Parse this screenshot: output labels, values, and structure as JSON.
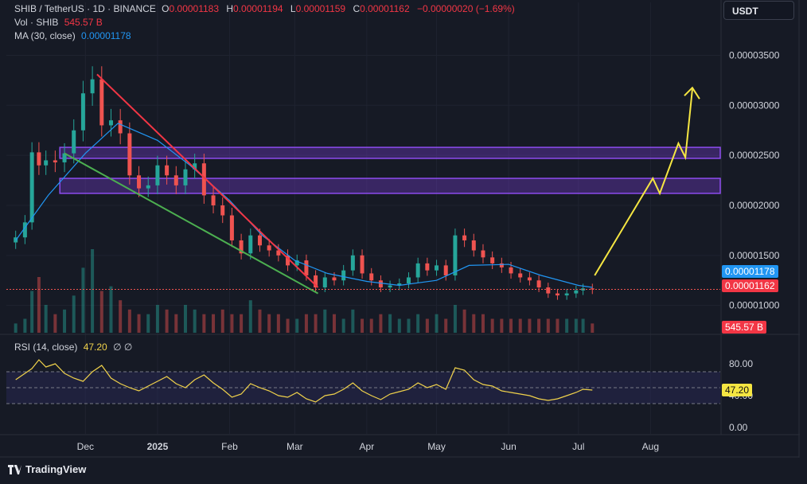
{
  "header": {
    "symbol": "SHIB / TetherUS · 1D · BINANCE",
    "o_label": "O",
    "o_value": "0.00001183",
    "h_label": "H",
    "h_value": "0.00001194",
    "l_label": "L",
    "l_value": "0.00001159",
    "c_label": "C",
    "c_value": "0.00001162",
    "change": "−0.00000020 (−1.69%)",
    "vol_label": "Vol · SHIB",
    "vol_value": "545.57 B",
    "ma_label": "MA (30, close)",
    "ma_value": "0.00001178"
  },
  "currency_button": "USDT",
  "badges": {
    "ma": "0.00001178",
    "close": "0.00001162",
    "volume": "545.57 B",
    "rsi": "47.20"
  },
  "rsi": {
    "label": "RSI (14, close)",
    "value": "47.20",
    "icons": "∅ ∅",
    "ticks": [
      "80.00",
      "40.00",
      "0.00"
    ]
  },
  "brand": "TradingView",
  "colors": {
    "background": "#161a25",
    "up": "#26a69a",
    "down": "#ef5350",
    "ma": "#2196f3",
    "rsi": "#f0d24b",
    "zone": "#7b3fd6",
    "red_trend": "#f23645",
    "green_trend": "#4caf50",
    "projection": "#f5e642"
  },
  "chart_data": {
    "type": "line",
    "y_ticks": [
      "0.00003500",
      "0.00003000",
      "0.00002500",
      "0.00002000",
      "0.00001500",
      "0.00001000"
    ],
    "x_ticks": [
      "Dec",
      "2025",
      "Feb",
      "Mar",
      "Apr",
      "May",
      "Jun",
      "Jul",
      "Aug"
    ],
    "ylim": [
      8.7e-06,
      3.83e-05
    ],
    "price_series": {
      "x": [
        "2024-11-01",
        "2024-11-05",
        "2024-11-08",
        "2024-11-11",
        "2024-11-14",
        "2024-11-18",
        "2024-11-22",
        "2024-11-26",
        "2024-11-30",
        "2024-12-04",
        "2024-12-08",
        "2024-12-12",
        "2024-12-16",
        "2024-12-20",
        "2024-12-24",
        "2024-12-28",
        "2025-01-01",
        "2025-01-05",
        "2025-01-09",
        "2025-01-13",
        "2025-01-17",
        "2025-01-21",
        "2025-01-25",
        "2025-01-29",
        "2025-02-02",
        "2025-02-06",
        "2025-02-10",
        "2025-02-14",
        "2025-02-18",
        "2025-02-22",
        "2025-02-26",
        "2025-03-02",
        "2025-03-06",
        "2025-03-10",
        "2025-03-14",
        "2025-03-18",
        "2025-03-22",
        "2025-03-26",
        "2025-03-30",
        "2025-04-03",
        "2025-04-07",
        "2025-04-11",
        "2025-04-15",
        "2025-04-19",
        "2025-04-23",
        "2025-04-27",
        "2025-05-01",
        "2025-05-05",
        "2025-05-09",
        "2025-05-13",
        "2025-05-17",
        "2025-05-21",
        "2025-05-25",
        "2025-05-29",
        "2025-06-02",
        "2025-06-06",
        "2025-06-10",
        "2025-06-14",
        "2025-06-18",
        "2025-06-22",
        "2025-06-26",
        "2025-06-30",
        "2025-07-03",
        "2025-07-07"
      ],
      "close": [
        1.68e-05,
        1.83e-05,
        2.53e-05,
        2.4e-05,
        2.45e-05,
        2.43e-05,
        2.52e-05,
        2.75e-05,
        3.12e-05,
        3.26e-05,
        2.8e-05,
        2.85e-05,
        2.72e-05,
        2.3e-05,
        2.17e-05,
        2.2e-05,
        2.4e-05,
        2.3e-05,
        2.2e-05,
        2.36e-05,
        2.42e-05,
        2.1e-05,
        2e-05,
        1.9e-05,
        1.65e-05,
        1.52e-05,
        1.7e-05,
        1.6e-05,
        1.55e-05,
        1.5e-05,
        1.4e-05,
        1.45e-05,
        1.3e-05,
        1.18e-05,
        1.28e-05,
        1.25e-05,
        1.35e-05,
        1.5e-05,
        1.32e-05,
        1.25e-05,
        1.18e-05,
        1.2e-05,
        1.22e-05,
        1.28e-05,
        1.42e-05,
        1.35e-05,
        1.4e-05,
        1.3e-05,
        1.7e-05,
        1.65e-05,
        1.55e-05,
        1.48e-05,
        1.42e-05,
        1.38e-05,
        1.32e-05,
        1.28e-05,
        1.25e-05,
        1.18e-05,
        1.12e-05,
        1.1e-05,
        1.12e-05,
        1.15e-05,
        1.17e-05,
        1.16e-05
      ]
    },
    "ma_series": {
      "x": [
        "2024-11-01",
        "2024-11-15",
        "2024-12-01",
        "2024-12-15",
        "2025-01-01",
        "2025-01-15",
        "2025-02-01",
        "2025-02-15",
        "2025-03-01",
        "2025-03-15",
        "2025-04-01",
        "2025-04-15",
        "2025-05-01",
        "2025-05-15",
        "2025-06-01",
        "2025-06-15",
        "2025-07-01",
        "2025-07-07"
      ],
      "values": [
        1.65e-05,
        2.1e-05,
        2.52e-05,
        2.82e-05,
        2.65e-05,
        2.4e-05,
        2.05e-05,
        1.7e-05,
        1.45e-05,
        1.32e-05,
        1.24e-05,
        1.2e-05,
        1.25e-05,
        1.4e-05,
        1.41e-05,
        1.3e-05,
        1.2e-05,
        1.18e-05
      ]
    },
    "resistance_zones": [
      {
        "from": 2.47e-05,
        "to": 2.58e-05
      },
      {
        "from": 2.12e-05,
        "to": 2.27e-05
      }
    ],
    "trendlines": [
      {
        "color": "red",
        "from": {
          "x": "2024-12-06",
          "y": 3.31e-05
        },
        "to": {
          "x": "2025-03-11",
          "y": 1.18e-05
        }
      },
      {
        "color": "green",
        "from": {
          "x": "2024-11-22",
          "y": 2.52e-05
        },
        "to": {
          "x": "2025-03-11",
          "y": 1.12e-05
        }
      }
    ],
    "projection_path": [
      {
        "x": "2025-07-08",
        "y": 1.3e-05
      },
      {
        "x": "2025-08-02",
        "y": 2.27e-05
      },
      {
        "x": "2025-08-05",
        "y": 2.12e-05
      },
      {
        "x": "2025-08-13",
        "y": 2.62e-05
      },
      {
        "x": "2025-08-16",
        "y": 2.48e-05
      },
      {
        "x": "2025-08-19",
        "y": 3.16e-05
      }
    ],
    "rsi_series": [
      60,
      68,
      74,
      85,
      76,
      80,
      68,
      62,
      58,
      70,
      78,
      62,
      55,
      50,
      46,
      52,
      58,
      64,
      55,
      50,
      60,
      66,
      56,
      48,
      38,
      42,
      55,
      50,
      46,
      40,
      38,
      44,
      36,
      32,
      40,
      42,
      48,
      56,
      46,
      40,
      35,
      42,
      45,
      48,
      56,
      50,
      54,
      48,
      75,
      72,
      60,
      54,
      52,
      46,
      44,
      42,
      40,
      36,
      34,
      36,
      40,
      44,
      48,
      47
    ],
    "rsi_levels": [
      70,
      50,
      30
    ],
    "volume_series": [
      2,
      3,
      9,
      12,
      6,
      4,
      5,
      8,
      14,
      18,
      9,
      10,
      7,
      5,
      4,
      4,
      6,
      5,
      4,
      6,
      5,
      4,
      4,
      5,
      4,
      4,
      7,
      5,
      4,
      4,
      3,
      3,
      4,
      4,
      5,
      4,
      3,
      5,
      3,
      3,
      4,
      4,
      3,
      3,
      4,
      3,
      4,
      3,
      6,
      5,
      4,
      4,
      3,
      3,
      3,
      3,
      3,
      3,
      3,
      3,
      3,
      3,
      3,
      2
    ]
  }
}
